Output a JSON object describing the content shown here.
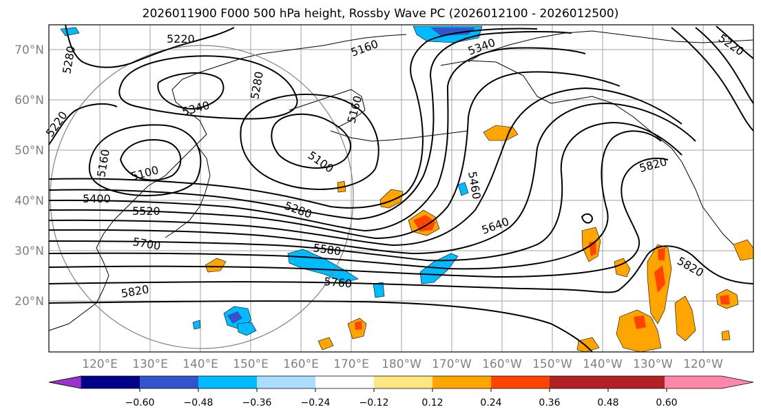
{
  "title": "2026011900 F000 500 hPa height, Rossby Wave PC (2026012100 - 2026012500)",
  "lat_labels": [
    "70°N",
    "60°N",
    "50°N",
    "40°N",
    "30°N",
    "20°N"
  ],
  "lon_labels": [
    "120°E",
    "130°E",
    "140°E",
    "150°E",
    "160°E",
    "170°E",
    "180°W",
    "170°W",
    "160°W",
    "150°W",
    "140°W",
    "130°W",
    "120°W"
  ],
  "contour_labels": [
    "5220",
    "5280",
    "5280",
    "5220",
    "5160",
    "5340",
    "5100",
    "5400",
    "5520",
    "5700",
    "5820",
    "5160",
    "5160",
    "5100",
    "5280",
    "5580",
    "5760",
    "5460",
    "5340",
    "5640",
    "5820",
    "5820",
    "5220"
  ],
  "colorbar": {
    "ticks": [
      "−0.60",
      "−0.48",
      "−0.36",
      "−0.24",
      "−0.12",
      "0.12",
      "0.24",
      "0.36",
      "0.48",
      "0.60"
    ],
    "colors": [
      "#9933cc",
      "#000088",
      "#3355cc",
      "#00bbff",
      "#aaddff",
      "#ffffff",
      "#ffe680",
      "#ffa500",
      "#ff4400",
      "#b22222",
      "#ff88aa"
    ]
  },
  "colors": {
    "grid": "#a0a0a0",
    "contour": "#000000",
    "positive_anomaly": "#ffa500",
    "negative_anomaly": "#00bbff"
  }
}
